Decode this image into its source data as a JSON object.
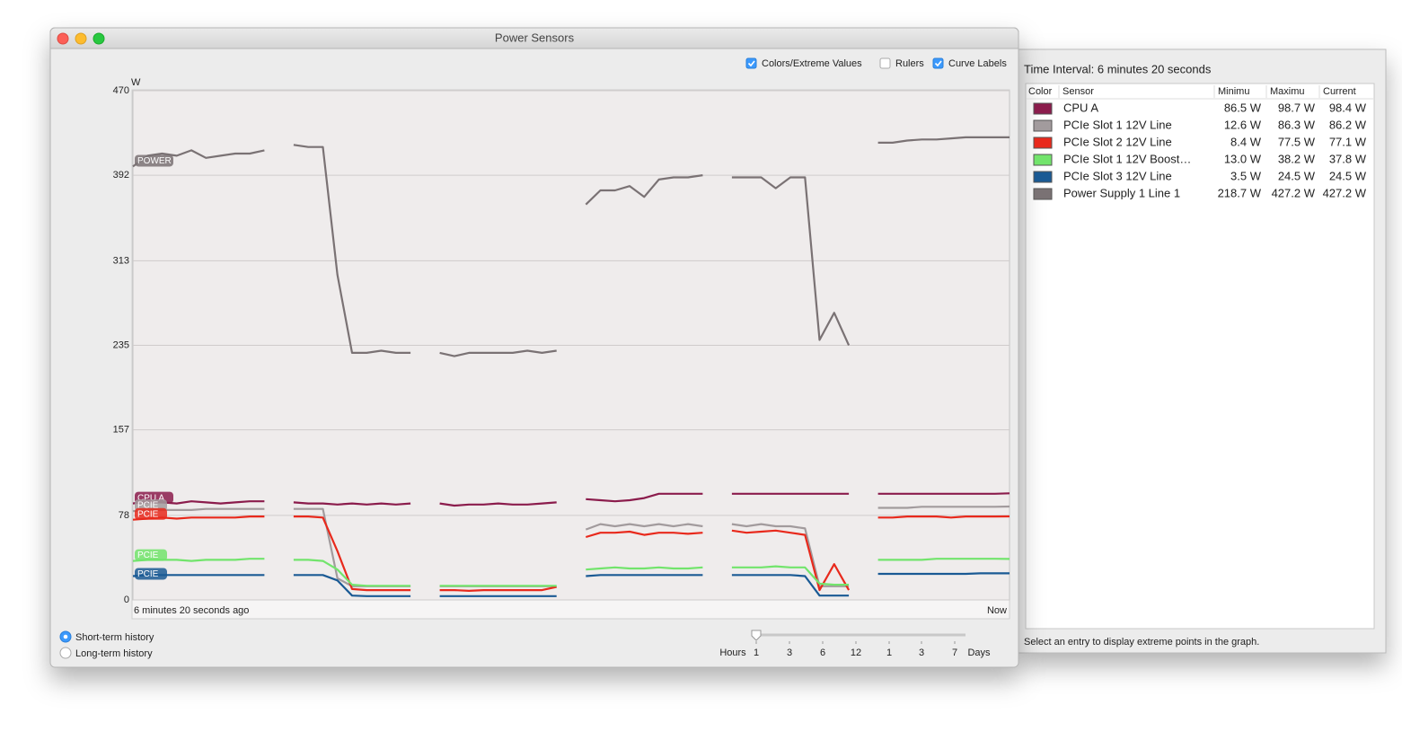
{
  "window": {
    "title": "Power Sensors",
    "options": [
      {
        "label": "Colors/Extreme Values",
        "checked": true
      },
      {
        "label": "Rulers",
        "checked": false
      },
      {
        "label": "Curve Labels",
        "checked": true
      }
    ],
    "history": [
      {
        "label": "Short-term history",
        "selected": true
      },
      {
        "label": "Long-term history",
        "selected": false
      }
    ],
    "range_labels": [
      "Hours",
      "1",
      "3",
      "6",
      "12",
      "1",
      "3",
      "7",
      "Days"
    ]
  },
  "chart_data": {
    "type": "line",
    "ylabel": "W",
    "ylim": [
      0,
      470
    ],
    "yticks": [
      0,
      78,
      157,
      235,
      313,
      392,
      470
    ],
    "grid": true,
    "categories": [
      "6 minutes 20 seconds ago",
      null,
      null,
      null,
      null,
      null,
      null,
      null,
      null,
      null,
      null,
      null,
      null,
      null,
      null,
      null,
      null,
      null,
      null,
      null,
      null,
      null,
      null,
      null,
      null,
      null,
      null,
      null,
      null,
      null,
      null,
      null,
      null,
      null,
      null,
      null,
      null,
      null,
      null,
      null,
      null,
      null,
      null,
      null,
      null,
      null,
      null,
      null,
      null,
      null,
      null,
      null,
      null,
      null,
      null,
      null,
      null,
      null,
      null,
      null,
      "Now"
    ],
    "series": [
      {
        "name": "CPU A",
        "curve_label": "CPU A",
        "color": "#8b1c4c",
        "values": [
          89,
          91,
          90,
          89,
          91,
          90,
          89,
          90,
          91,
          91,
          null,
          90,
          89,
          89,
          88,
          89,
          88,
          89,
          88,
          89,
          null,
          89,
          87,
          88,
          88,
          89,
          88,
          88,
          89,
          90,
          null,
          93,
          92,
          91,
          92,
          94,
          98,
          98,
          98,
          98,
          null,
          98,
          98,
          98,
          98,
          98,
          98,
          98,
          98,
          98,
          null,
          98,
          98,
          98,
          98,
          98,
          98,
          98,
          98,
          98,
          98.4
        ]
      },
      {
        "name": "PCIe Slot 1 12V Line",
        "curve_label": "PCIE",
        "color": "#a29b9d",
        "values": [
          82,
          83,
          83,
          83,
          83,
          84,
          84,
          84,
          84,
          84,
          null,
          84,
          84,
          84,
          20,
          12.6,
          12.6,
          12.6,
          12.6,
          12.6,
          null,
          12.6,
          12.6,
          12.6,
          12.6,
          12.6,
          12.6,
          12.6,
          12.6,
          12.6,
          null,
          65,
          70,
          68,
          70,
          68,
          70,
          68,
          70,
          68,
          null,
          70,
          68,
          70,
          68,
          68,
          66,
          12.6,
          12.6,
          12.6,
          null,
          85,
          85,
          85,
          86,
          86,
          86,
          86,
          86,
          86,
          86.2
        ]
      },
      {
        "name": "PCIe Slot 2 12V Line",
        "curve_label": "PCIE",
        "color": "#e8291c",
        "values": [
          74,
          75,
          76,
          75,
          76,
          76,
          76,
          76,
          77,
          77,
          null,
          77,
          77,
          76,
          45,
          10,
          9,
          9,
          9,
          9,
          null,
          9,
          9,
          8.4,
          9,
          9,
          9,
          9,
          9,
          12,
          null,
          58,
          62,
          62,
          63,
          60,
          62,
          62,
          61,
          62,
          null,
          64,
          62,
          63,
          64,
          62,
          60,
          9,
          33,
          9,
          null,
          76,
          76,
          77,
          77,
          77,
          76,
          77,
          77,
          77,
          77.1
        ]
      },
      {
        "name": "PCIe Slot 1 12V Boost…",
        "curve_label": "PCIE",
        "color": "#72e46c",
        "values": [
          36,
          37,
          37,
          37,
          36,
          37,
          37,
          37,
          38,
          38,
          null,
          37,
          37,
          36,
          28,
          14,
          13,
          13,
          13,
          13,
          null,
          13,
          13,
          13,
          13,
          13,
          13,
          13,
          13,
          13,
          null,
          28,
          29,
          30,
          29,
          29,
          30,
          29,
          29,
          30,
          null,
          30,
          30,
          30,
          31,
          30,
          30,
          15,
          14,
          14,
          null,
          37,
          37,
          37,
          37,
          38,
          38,
          38,
          38,
          38,
          37.8
        ]
      },
      {
        "name": "PCIe Slot 3 12V Line",
        "curve_label": "PCIE",
        "color": "#1a5a94",
        "values": [
          22,
          23,
          23,
          23,
          23,
          23,
          23,
          23,
          23,
          23,
          null,
          23,
          23,
          23,
          18,
          4,
          3.5,
          3.5,
          3.5,
          3.5,
          null,
          3.5,
          3.5,
          3.5,
          3.5,
          3.5,
          3.5,
          3.5,
          3.5,
          3.5,
          null,
          22,
          23,
          23,
          23,
          23,
          23,
          23,
          23,
          23,
          null,
          23,
          23,
          23,
          23,
          23,
          22,
          4,
          4,
          4,
          null,
          24,
          24,
          24,
          24,
          24,
          24,
          24,
          24.5,
          24.5,
          24.5
        ]
      },
      {
        "name": "Power Supply 1 Line 1",
        "curve_label": "POWER",
        "color": "#7a7274",
        "values": [
          400,
          410,
          412,
          410,
          415,
          408,
          410,
          412,
          412,
          415,
          null,
          420,
          418,
          418,
          300,
          228,
          228,
          230,
          228,
          228,
          null,
          228,
          225,
          228,
          228,
          228,
          228,
          230,
          228,
          230,
          null,
          365,
          378,
          378,
          382,
          372,
          388,
          390,
          390,
          392,
          null,
          390,
          390,
          390,
          380,
          390,
          390,
          240,
          265,
          235,
          null,
          422,
          422,
          424,
          425,
          425,
          426,
          427,
          427,
          427,
          427
        ]
      }
    ]
  },
  "panel": {
    "title": "Time Interval: 6 minutes 20 seconds",
    "columns": [
      "Color",
      "Sensor",
      "Minimu",
      "Maximu",
      "Current"
    ],
    "rows": [
      {
        "min": "86.5 W",
        "max": "98.7 W",
        "current": "98.4 W"
      },
      {
        "min": "12.6 W",
        "max": "86.3 W",
        "current": "86.2 W"
      },
      {
        "min": "8.4 W",
        "max": "77.5 W",
        "current": "77.1 W"
      },
      {
        "min": "13.0 W",
        "max": "38.2 W",
        "current": "37.8 W"
      },
      {
        "min": "3.5 W",
        "max": "24.5 W",
        "current": "24.5 W"
      },
      {
        "min": "218.7 W",
        "max": "427.2 W",
        "current": "427.2 W"
      }
    ],
    "footer": "Select an entry to display extreme points in the graph."
  }
}
